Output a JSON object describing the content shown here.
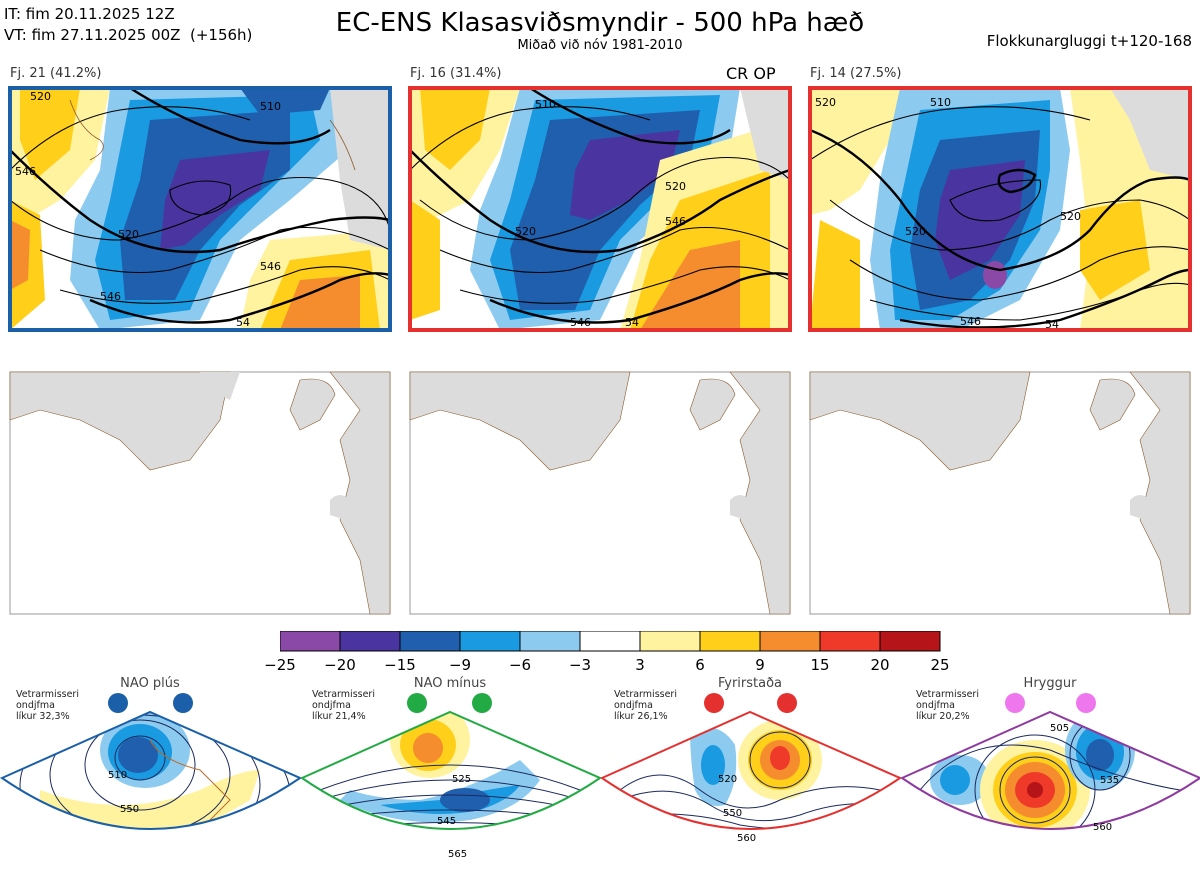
{
  "header": {
    "it_line": "IT: fim 20.11.2025 12Z",
    "vt_line": "VT: fim 27.11.2025 00Z  (+156h)",
    "title": "EC-ENS Klasasviðsmyndir - 500 hPa hæð",
    "subtitle": "Miðað við nóv 1981-2010",
    "window": "Flokkunargluggi t+120-168"
  },
  "clusters": [
    {
      "label": "Fj. 21 (41.2%)",
      "border": "#1a5fa8",
      "op": "",
      "contours": [
        "520",
        "510",
        "546",
        "520",
        "546",
        "54",
        "546"
      ]
    },
    {
      "label": "Fj. 16 (31.4%)",
      "border": "#e53030",
      "op": "CR OP",
      "contours": [
        "510",
        "520",
        "546",
        "520",
        "54",
        "546"
      ]
    },
    {
      "label": "Fj. 14 (27.5%)",
      "border": "#e53030",
      "op": "",
      "contours": [
        "520",
        "510",
        "520",
        "520",
        "546",
        "54"
      ]
    }
  ],
  "colorbar": {
    "ticks": [
      "−25",
      "−20",
      "−15",
      "−9",
      "−6",
      "−3",
      "3",
      "6",
      "9",
      "15",
      "20",
      "25"
    ],
    "colors": [
      "#8a49a6",
      "#4a35a0",
      "#1f5fad",
      "#1a9ae0",
      "#8ccbef",
      "#ffffff",
      "#fff3a0",
      "#ffcf1a",
      "#f58c2e",
      "#ef3a2a",
      "#b51419"
    ]
  },
  "regimes": [
    {
      "name": "NAO plús",
      "info": [
        "Vetrarmisseri",
        "ondjfma",
        "líkur 32,3%"
      ],
      "dot": "#1a5fa8",
      "border": "#1a5fa8",
      "labels": [
        "510",
        "550"
      ]
    },
    {
      "name": "NAO mínus",
      "info": [
        "Vetrarmisseri",
        "ondjfma",
        "líkur 21,4%"
      ],
      "dot": "#22aa44",
      "border": "#22aa44",
      "labels": [
        "525",
        "545",
        "565"
      ]
    },
    {
      "name": "Fyrirstaða",
      "info": [
        "Vetrarmisseri",
        "ondjfma",
        "líkur 26,1%"
      ],
      "dot": "#e53030",
      "border": "#e53030",
      "labels": [
        "520",
        "550",
        "560"
      ]
    },
    {
      "name": "Hryggur",
      "info": [
        "Vetrarmisseri",
        "ondjfma",
        "líkur 20,2%"
      ],
      "dot": "#ee77ee",
      "border": "#8e3a9e",
      "labels": [
        "505",
        "535",
        "560"
      ]
    }
  ]
}
